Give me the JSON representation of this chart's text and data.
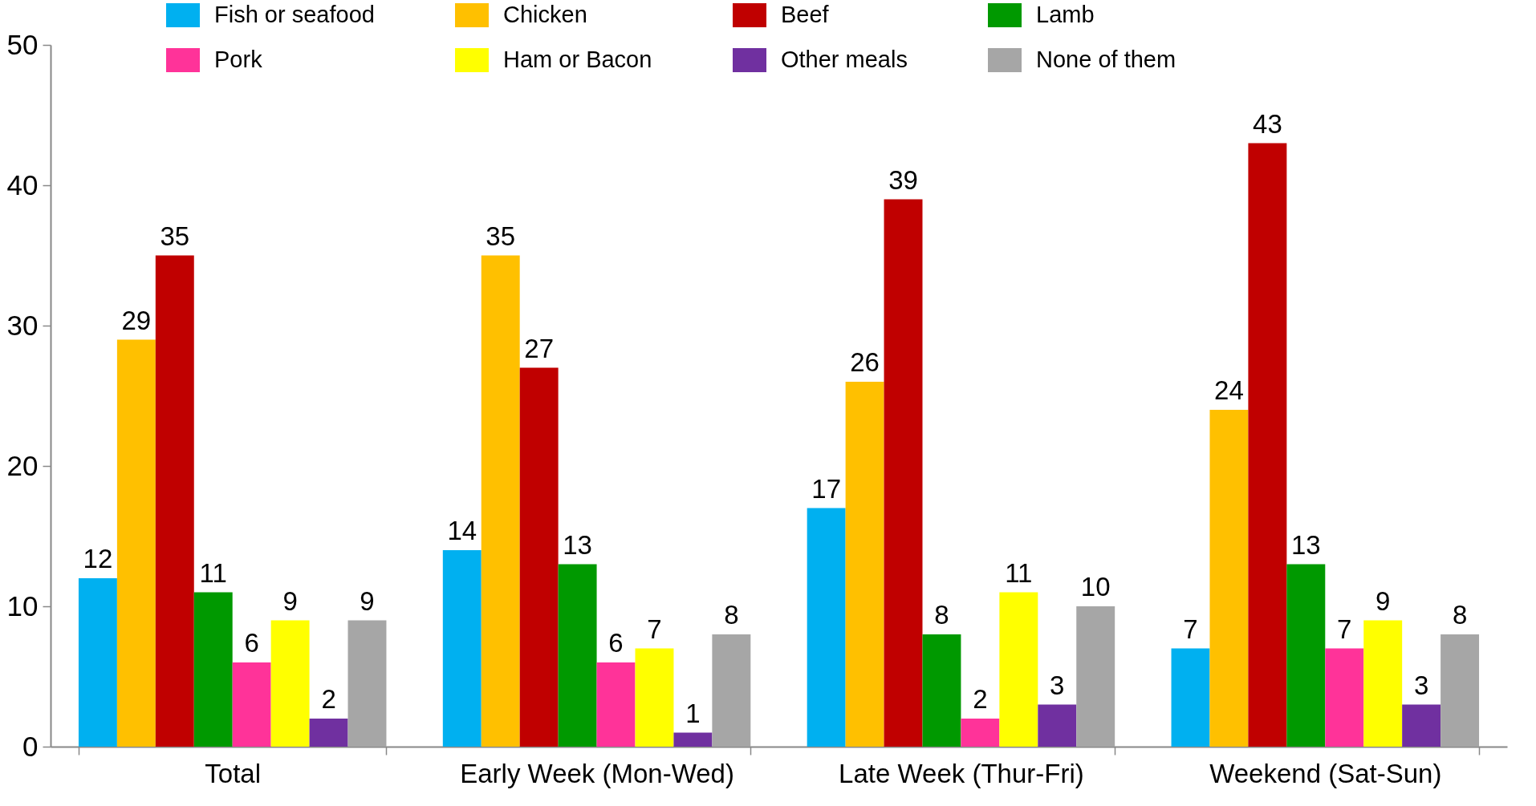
{
  "chart_data": {
    "type": "bar",
    "categories": [
      "Total",
      "Early Week (Mon-Wed)",
      "Late Week (Thur-Fri)",
      "Weekend (Sat-Sun)"
    ],
    "series": [
      {
        "name": "Fish or seafood",
        "color": "#00b0f0",
        "values": [
          12,
          14,
          17,
          7
        ]
      },
      {
        "name": "Chicken",
        "color": "#ffc000",
        "values": [
          29,
          35,
          26,
          24
        ]
      },
      {
        "name": "Beef",
        "color": "#c00000",
        "values": [
          35,
          27,
          39,
          43
        ]
      },
      {
        "name": "Lamb",
        "color": "#009900",
        "values": [
          11,
          13,
          8,
          13
        ]
      },
      {
        "name": "Pork",
        "color": "#ff3399",
        "values": [
          6,
          6,
          2,
          7
        ]
      },
      {
        "name": "Ham or Bacon",
        "color": "#ffff00",
        "values": [
          9,
          7,
          11,
          9
        ]
      },
      {
        "name": "Other meals",
        "color": "#7030a0",
        "values": [
          2,
          1,
          3,
          3
        ]
      },
      {
        "name": "None of them",
        "color": "#a6a6a6",
        "values": [
          9,
          8,
          10,
          8
        ]
      }
    ],
    "ylim": [
      0,
      50
    ],
    "yticks": [
      0,
      10,
      20,
      30,
      40,
      50
    ],
    "data_labels": true,
    "legend": "top",
    "grid": false
  }
}
